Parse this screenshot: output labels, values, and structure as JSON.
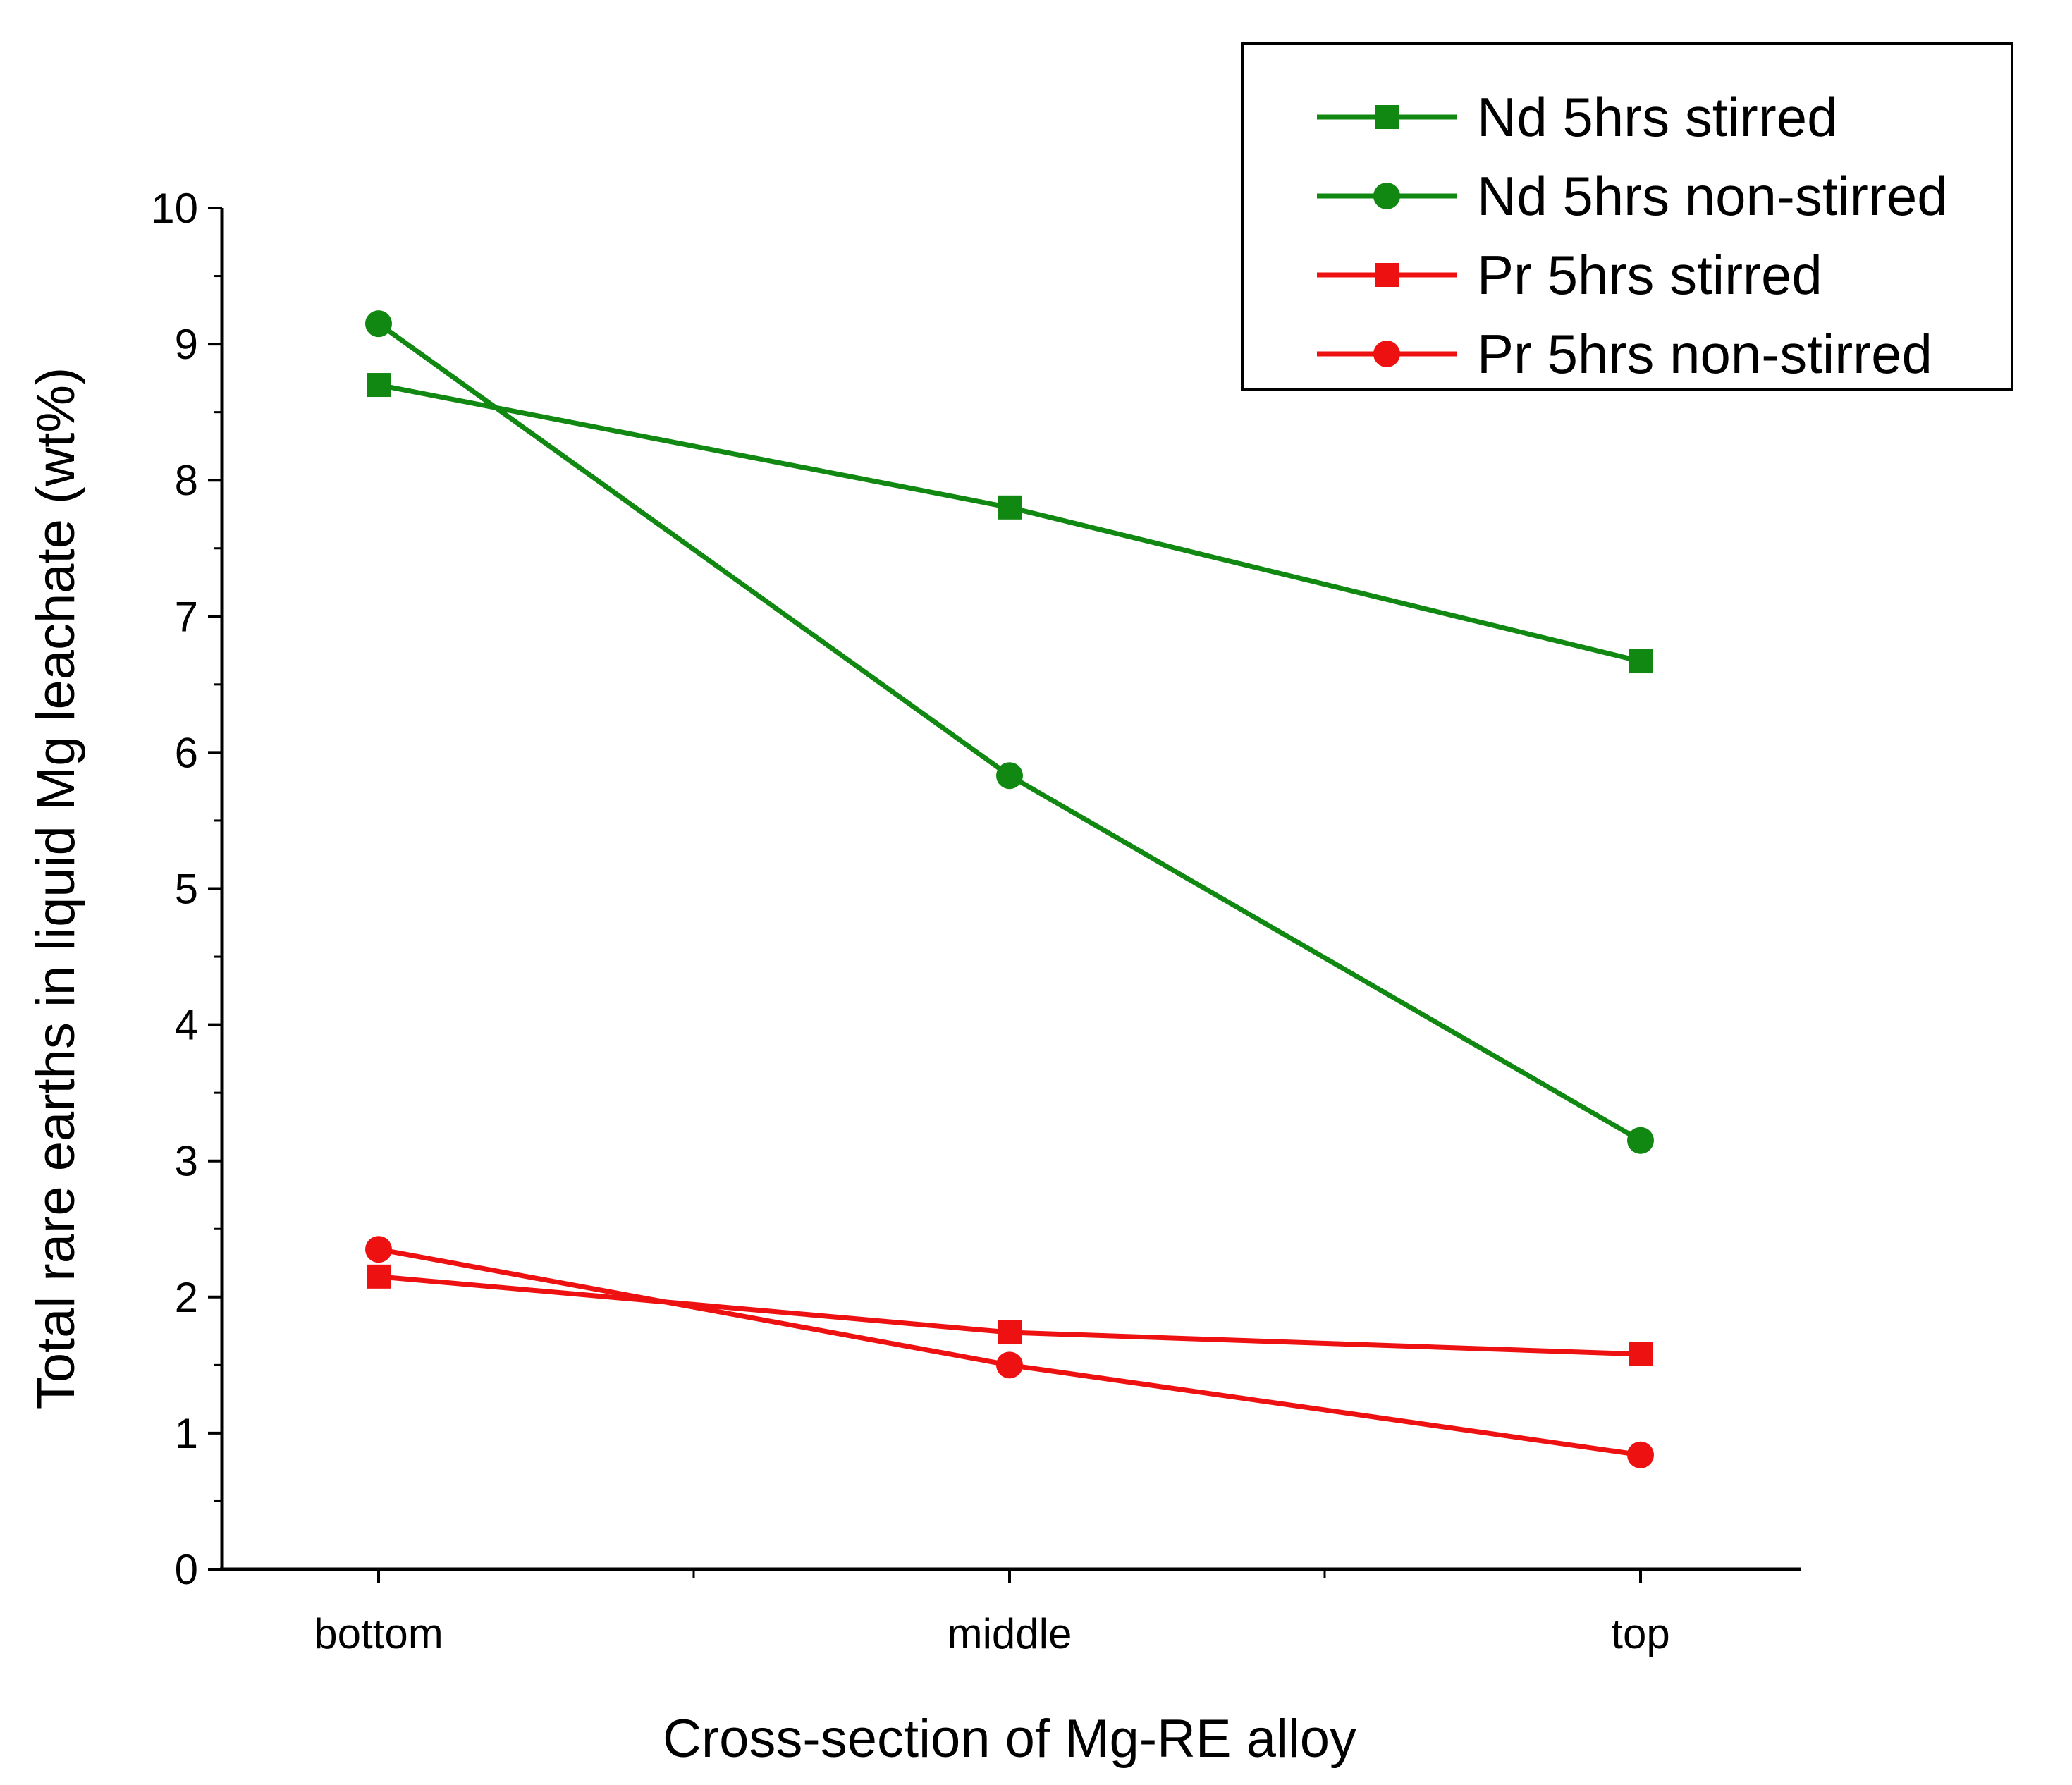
{
  "chart_data": {
    "type": "line",
    "title": "",
    "xlabel": "Cross-section of Mg-RE alloy",
    "ylabel": "Total rare earths in liquid Mg leachate (wt%)",
    "categories": [
      "bottom",
      "middle",
      "top"
    ],
    "ylim": [
      0,
      10
    ],
    "yticks": [
      0,
      1,
      2,
      3,
      4,
      5,
      6,
      7,
      8,
      9,
      10
    ],
    "grid": false,
    "legend_position": "top-right",
    "colors": {
      "green": "#118811",
      "red": "#ee1111",
      "axis": "#000000"
    },
    "series": [
      {
        "name": "Nd 5hrs stirred",
        "color": "green",
        "marker": "square",
        "values": [
          8.7,
          7.8,
          6.67
        ]
      },
      {
        "name": "Nd 5hrs non-stirred",
        "color": "green",
        "marker": "circle",
        "values": [
          9.15,
          5.83,
          3.15
        ]
      },
      {
        "name": "Pr 5hrs stirred",
        "color": "red",
        "marker": "square",
        "values": [
          2.15,
          1.74,
          1.58
        ]
      },
      {
        "name": "Pr 5hrs non-stirred",
        "color": "red",
        "marker": "circle",
        "values": [
          2.35,
          1.5,
          0.84
        ]
      }
    ]
  }
}
